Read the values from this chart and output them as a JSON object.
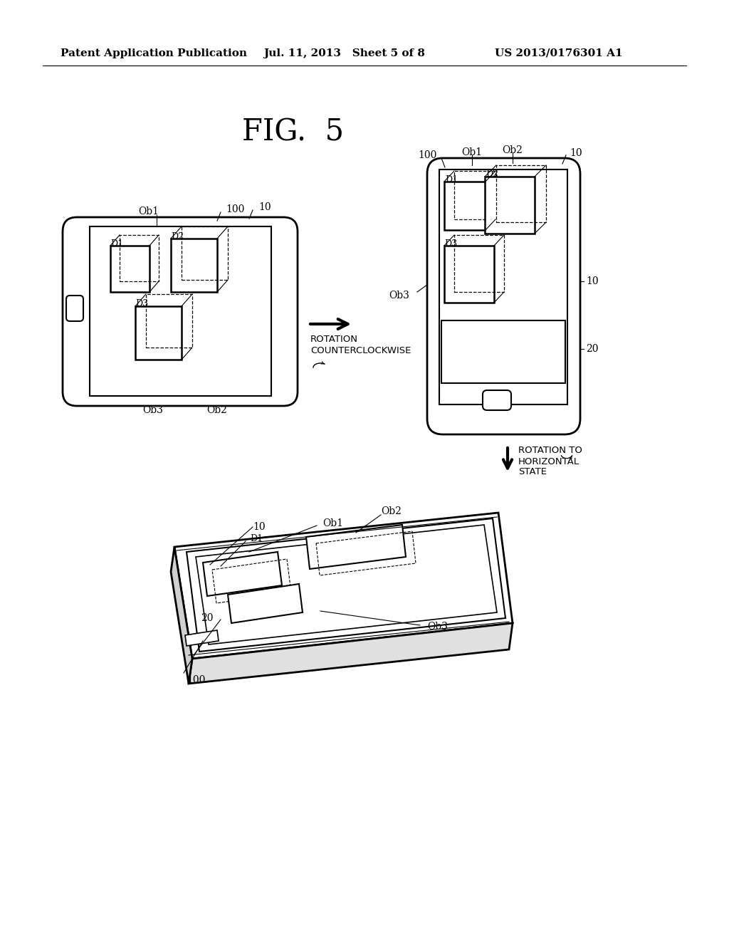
{
  "bg_color": "#ffffff",
  "text_color": "#000000",
  "header_left": "Patent Application Publication",
  "header_mid": "Jul. 11, 2013   Sheet 5 of 8",
  "header_right": "US 2013/0176301 A1",
  "fig_label": "FIG.  5"
}
